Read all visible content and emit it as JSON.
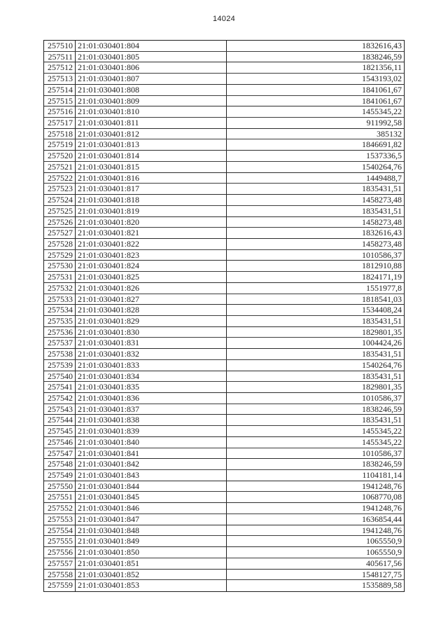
{
  "page": {
    "page_number": "14024"
  },
  "table": {
    "rows": [
      [
        "257510",
        "21:01:030401:804",
        "1832616,43"
      ],
      [
        "257511",
        "21:01:030401:805",
        "1838246,59"
      ],
      [
        "257512",
        "21:01:030401:806",
        "1821356,11"
      ],
      [
        "257513",
        "21:01:030401:807",
        "1543193,02"
      ],
      [
        "257514",
        "21:01:030401:808",
        "1841061,67"
      ],
      [
        "257515",
        "21:01:030401:809",
        "1841061,67"
      ],
      [
        "257516",
        "21:01:030401:810",
        "1455345,22"
      ],
      [
        "257517",
        "21:01:030401:811",
        "911992,58"
      ],
      [
        "257518",
        "21:01:030401:812",
        "385132"
      ],
      [
        "257519",
        "21:01:030401:813",
        "1846691,82"
      ],
      [
        "257520",
        "21:01:030401:814",
        "1537336,5"
      ],
      [
        "257521",
        "21:01:030401:815",
        "1540264,76"
      ],
      [
        "257522",
        "21:01:030401:816",
        "1449488,7"
      ],
      [
        "257523",
        "21:01:030401:817",
        "1835431,51"
      ],
      [
        "257524",
        "21:01:030401:818",
        "1458273,48"
      ],
      [
        "257525",
        "21:01:030401:819",
        "1835431,51"
      ],
      [
        "257526",
        "21:01:030401:820",
        "1458273,48"
      ],
      [
        "257527",
        "21:01:030401:821",
        "1832616,43"
      ],
      [
        "257528",
        "21:01:030401:822",
        "1458273,48"
      ],
      [
        "257529",
        "21:01:030401:823",
        "1010586,37"
      ],
      [
        "257530",
        "21:01:030401:824",
        "1812910,88"
      ],
      [
        "257531",
        "21:01:030401:825",
        "1824171,19"
      ],
      [
        "257532",
        "21:01:030401:826",
        "1551977,8"
      ],
      [
        "257533",
        "21:01:030401:827",
        "1818541,03"
      ],
      [
        "257534",
        "21:01:030401:828",
        "1534408,24"
      ],
      [
        "257535",
        "21:01:030401:829",
        "1835431,51"
      ],
      [
        "257536",
        "21:01:030401:830",
        "1829801,35"
      ],
      [
        "257537",
        "21:01:030401:831",
        "1004424,26"
      ],
      [
        "257538",
        "21:01:030401:832",
        "1835431,51"
      ],
      [
        "257539",
        "21:01:030401:833",
        "1540264,76"
      ],
      [
        "257540",
        "21:01:030401:834",
        "1835431,51"
      ],
      [
        "257541",
        "21:01:030401:835",
        "1829801,35"
      ],
      [
        "257542",
        "21:01:030401:836",
        "1010586,37"
      ],
      [
        "257543",
        "21:01:030401:837",
        "1838246,59"
      ],
      [
        "257544",
        "21:01:030401:838",
        "1835431,51"
      ],
      [
        "257545",
        "21:01:030401:839",
        "1455345,22"
      ],
      [
        "257546",
        "21:01:030401:840",
        "1455345,22"
      ],
      [
        "257547",
        "21:01:030401:841",
        "1010586,37"
      ],
      [
        "257548",
        "21:01:030401:842",
        "1838246,59"
      ],
      [
        "257549",
        "21:01:030401:843",
        "1104181,14"
      ],
      [
        "257550",
        "21:01:030401:844",
        "1941248,76"
      ],
      [
        "257551",
        "21:01:030401:845",
        "1068770,08"
      ],
      [
        "257552",
        "21:01:030401:846",
        "1941248,76"
      ],
      [
        "257553",
        "21:01:030401:847",
        "1636854,44"
      ],
      [
        "257554",
        "21:01:030401:848",
        "1941248,76"
      ],
      [
        "257555",
        "21:01:030401:849",
        "1065550,9"
      ],
      [
        "257556",
        "21:01:030401:850",
        "1065550,9"
      ],
      [
        "257557",
        "21:01:030401:851",
        "405617,56"
      ],
      [
        "257558",
        "21:01:030401:852",
        "1548127,75"
      ],
      [
        "257559",
        "21:01:030401:853",
        "1535889,58"
      ]
    ]
  }
}
